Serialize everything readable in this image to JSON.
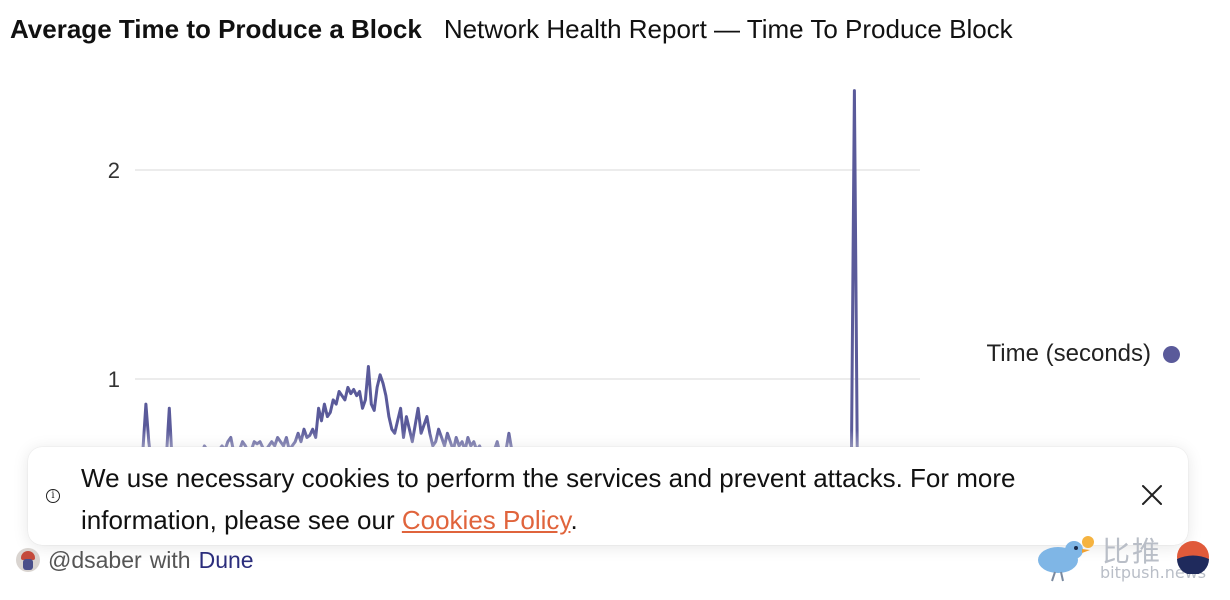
{
  "header": {
    "title": "Average Time to Produce a Block",
    "subtitle": "Network Health Report — Time To Produce Block"
  },
  "colors": {
    "series": "#5a5a9a",
    "grid": "#e6e6e6",
    "link": "#e0643c",
    "dune": "#2b2d7c"
  },
  "chart_data": {
    "type": "line",
    "ylim": [
      0,
      2.4
    ],
    "yticks": [
      {
        "value": 1,
        "label": "1"
      },
      {
        "value": 2,
        "label": "2"
      }
    ],
    "grid": true,
    "legend_position": "right",
    "series": [
      {
        "name": "Time (seconds)",
        "values": [
          0.62,
          0.66,
          0.88,
          0.7,
          0.58,
          0.6,
          0.62,
          0.64,
          0.66,
          0.62,
          0.86,
          0.6,
          0.58,
          0.62,
          0.6,
          0.64,
          0.66,
          0.62,
          0.6,
          0.58,
          0.62,
          0.64,
          0.68,
          0.66,
          0.62,
          0.6,
          0.64,
          0.66,
          0.68,
          0.66,
          0.7,
          0.72,
          0.65,
          0.62,
          0.66,
          0.7,
          0.68,
          0.65,
          0.66,
          0.7,
          0.69,
          0.7,
          0.67,
          0.66,
          0.68,
          0.7,
          0.68,
          0.72,
          0.7,
          0.68,
          0.72,
          0.66,
          0.68,
          0.7,
          0.74,
          0.7,
          0.76,
          0.72,
          0.73,
          0.76,
          0.72,
          0.86,
          0.8,
          0.88,
          0.82,
          0.84,
          0.9,
          0.88,
          0.94,
          0.92,
          0.9,
          0.96,
          0.93,
          0.95,
          0.92,
          0.94,
          0.86,
          0.9,
          1.06,
          0.88,
          0.85,
          0.96,
          1.02,
          0.98,
          0.92,
          0.82,
          0.76,
          0.74,
          0.8,
          0.86,
          0.72,
          0.82,
          0.76,
          0.7,
          0.78,
          0.86,
          0.74,
          0.78,
          0.82,
          0.74,
          0.68,
          0.7,
          0.76,
          0.72,
          0.68,
          0.74,
          0.7,
          0.66,
          0.72,
          0.68,
          0.7,
          0.66,
          0.72,
          0.68,
          0.7,
          0.66,
          0.68,
          0.64,
          0.66,
          0.64,
          0.62,
          0.66,
          0.7,
          0.64,
          0.62,
          0.66,
          0.74,
          0.66,
          0.64,
          0.66,
          0.62,
          0.64,
          0.62,
          0.64,
          0.62,
          0.6,
          0.62,
          0.64,
          0.62,
          0.6,
          0.62,
          0.6,
          0.62,
          0.64,
          0.62,
          0.6,
          0.62,
          0.6,
          0.62,
          0.6,
          0.62,
          0.64,
          0.62,
          0.6,
          0.62,
          0.6,
          0.62,
          0.64,
          0.62,
          0.6,
          0.62,
          0.6,
          0.62,
          0.64,
          0.62,
          0.6,
          0.62,
          0.6,
          0.62,
          0.64,
          0.62,
          0.6,
          0.62,
          0.64,
          0.62,
          0.6,
          0.62,
          0.6,
          0.62,
          0.64,
          0.62,
          0.6,
          0.62,
          0.6,
          0.62,
          0.64,
          0.62,
          0.6,
          0.62,
          0.64,
          0.62,
          0.6,
          0.62,
          0.6,
          0.62,
          0.64,
          0.62,
          0.6,
          0.62,
          0.6,
          0.62,
          0.64,
          0.62,
          0.6,
          0.62,
          0.64,
          0.62,
          0.6,
          0.62,
          0.6,
          0.62,
          0.64,
          0.62,
          0.6,
          0.62,
          0.6,
          0.62,
          0.64,
          0.62,
          0.6,
          0.62,
          0.6,
          0.62,
          0.64,
          0.62,
          0.6,
          0.62,
          0.64,
          0.62,
          0.6,
          0.62,
          0.6,
          0.62,
          0.64,
          0.62,
          0.6,
          0.62,
          0.6,
          0.62,
          0.64,
          0.62,
          0.6,
          0.62,
          0.6,
          2.38,
          0.62,
          0.6,
          0.62,
          0.64,
          0.62,
          0.6,
          0.62,
          0.6,
          0.62,
          0.64,
          0.62,
          0.6,
          0.62,
          0.6,
          0.62,
          0.64,
          0.62,
          0.6,
          0.62
        ]
      }
    ]
  },
  "cookie": {
    "text_before": "We use necessary cookies to perform the services and prevent attacks. For more information, please see our ",
    "link_text": "Cookies Policy",
    "text_after": ".",
    "info_icon": "i"
  },
  "footer": {
    "author": "@dsaber",
    "with_text": "with",
    "platform": "Dune"
  },
  "watermark": {
    "cn": "比推",
    "en": "bitpush.news"
  }
}
